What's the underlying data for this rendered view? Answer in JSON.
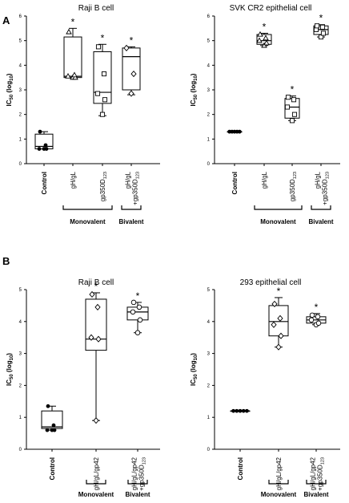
{
  "panel_labels": [
    "A",
    "B"
  ],
  "chart_data": [
    {
      "type": "boxplot",
      "title": "Raji B cell",
      "ylabel": "IC50 (log10)",
      "ylim": [
        0,
        6
      ],
      "yticks": [
        "0",
        "1",
        "2",
        "3",
        "4",
        "5",
        "6"
      ],
      "categories": [
        {
          "lines": [
            "Control"
          ],
          "bold": true
        },
        {
          "lines": [
            "gH/gL"
          ],
          "bold": false
        },
        {
          "lines": [
            "gp350D123"
          ],
          "bold": false
        },
        {
          "lines": [
            "gH/gL",
            "+gp350D123"
          ],
          "bold": false
        }
      ],
      "groups": [
        {
          "label": "Monovalent",
          "from": 1,
          "to": 2
        },
        {
          "label": "Bivalent",
          "from": 3,
          "to": 3
        }
      ],
      "series": [
        {
          "marker": "dot",
          "box": [
            0.6,
            0.7,
            1.2
          ],
          "whisker": [
            0.6,
            1.3
          ],
          "points": [
            0.6,
            0.6,
            0.6,
            0.75,
            1.3
          ],
          "star": false
        },
        {
          "marker": "triangle",
          "box": [
            3.5,
            3.55,
            5.15
          ],
          "whisker": [
            3.5,
            5.5
          ],
          "points": [
            3.5,
            3.5,
            3.55,
            3.6,
            5.35
          ],
          "star": true
        },
        {
          "marker": "square",
          "box": [
            2.45,
            2.9,
            4.55
          ],
          "whisker": [
            1.95,
            4.85
          ],
          "points": [
            2.0,
            2.6,
            2.85,
            3.65,
            4.75
          ],
          "star": true
        },
        {
          "marker": "diamond",
          "box": [
            3.0,
            4.35,
            4.7
          ],
          "whisker": [
            2.8,
            4.75
          ],
          "points": [
            2.85,
            3.65,
            4.7
          ],
          "star": true
        }
      ]
    },
    {
      "type": "boxplot",
      "title": "SVK CR2 epithelial cell",
      "ylabel": "IC50 (log10)",
      "ylim": [
        0,
        6
      ],
      "yticks": [
        "0",
        "1",
        "2",
        "3",
        "4",
        "5",
        "6"
      ],
      "categories": [
        {
          "lines": [
            "Control"
          ],
          "bold": true
        },
        {
          "lines": [
            "gH/gL"
          ],
          "bold": false
        },
        {
          "lines": [
            "gp350D123"
          ],
          "bold": false
        },
        {
          "lines": [
            "gH/gL",
            "+gp350D123"
          ],
          "bold": false
        }
      ],
      "groups": [
        {
          "label": "Monovalent",
          "from": 1,
          "to": 2
        },
        {
          "label": "Bivalent",
          "from": 3,
          "to": 3
        }
      ],
      "series": [
        {
          "marker": "dot",
          "box": [
            1.3,
            1.3,
            1.3
          ],
          "whisker": [
            1.3,
            1.3
          ],
          "points": [
            1.3,
            1.3,
            1.3,
            1.3,
            1.3
          ],
          "star": false
        },
        {
          "marker": "triangle",
          "box": [
            4.85,
            5.0,
            5.25
          ],
          "whisker": [
            4.8,
            5.3
          ],
          "points": [
            4.8,
            4.9,
            5.0,
            5.1,
            5.25
          ],
          "star": true
        },
        {
          "marker": "square",
          "box": [
            1.85,
            2.3,
            2.65
          ],
          "whisker": [
            1.75,
            2.75
          ],
          "points": [
            1.75,
            2.0,
            2.3,
            2.6,
            2.7
          ],
          "star": true
        },
        {
          "marker": "square",
          "box": [
            5.25,
            5.45,
            5.6
          ],
          "whisker": [
            5.15,
            5.65
          ],
          "points": [
            5.15,
            5.3,
            5.45,
            5.55,
            5.6
          ],
          "star": true
        }
      ]
    },
    {
      "type": "boxplot",
      "title": "Raji B cell",
      "ylabel": "IC50 (log10)",
      "ylim": [
        0,
        5
      ],
      "yticks": [
        "0",
        "1",
        "2",
        "3",
        "4",
        "5"
      ],
      "categories": [
        {
          "lines": [
            "Control"
          ],
          "bold": true
        },
        {
          "lines": [
            "gH/gL/gp42"
          ],
          "bold": false
        },
        {
          "lines": [
            "gH/gL/gp42",
            "+gp350D123"
          ],
          "bold": false
        }
      ],
      "groups": [
        {
          "label": "Monovalent",
          "from": 1,
          "to": 1
        },
        {
          "label": "Bivalent",
          "from": 2,
          "to": 2
        }
      ],
      "series": [
        {
          "marker": "dot",
          "box": [
            0.65,
            0.7,
            1.2
          ],
          "whisker": [
            0.6,
            1.35
          ],
          "points": [
            0.6,
            0.6,
            0.6,
            0.75,
            1.35
          ],
          "star": false
        },
        {
          "marker": "diamond",
          "box": [
            3.1,
            3.45,
            4.7
          ],
          "whisker": [
            0.9,
            4.9
          ],
          "points": [
            0.9,
            3.45,
            3.5,
            4.45,
            4.85
          ],
          "star": true
        },
        {
          "marker": "circle",
          "box": [
            4.05,
            4.3,
            4.45
          ],
          "whisker": [
            3.65,
            4.6
          ],
          "points": [
            3.65,
            4.05,
            4.3,
            4.45,
            4.6
          ],
          "star": true
        }
      ]
    },
    {
      "type": "boxplot",
      "title": "293 epithelial cell",
      "ylabel": "IC50 (log10)",
      "ylim": [
        0,
        5
      ],
      "yticks": [
        "0",
        "1",
        "2",
        "3",
        "4",
        "5"
      ],
      "categories": [
        {
          "lines": [
            "Control"
          ],
          "bold": true
        },
        {
          "lines": [
            "gH/gL/gp42"
          ],
          "bold": false
        },
        {
          "lines": [
            "gH/gL/gp42",
            "+gp350D123"
          ],
          "bold": false
        }
      ],
      "groups": [
        {
          "label": "Monovalent",
          "from": 1,
          "to": 1
        },
        {
          "label": "Bivalent",
          "from": 2,
          "to": 2
        }
      ],
      "series": [
        {
          "marker": "dot",
          "box": [
            1.2,
            1.2,
            1.2
          ],
          "whisker": [
            1.2,
            1.2
          ],
          "points": [
            1.2,
            1.2,
            1.2,
            1.2,
            1.2
          ],
          "star": false
        },
        {
          "marker": "diamond",
          "box": [
            3.55,
            4.0,
            4.5
          ],
          "whisker": [
            3.2,
            4.75
          ],
          "points": [
            3.2,
            3.55,
            3.9,
            4.1,
            4.55
          ],
          "star": true
        },
        {
          "marker": "circle",
          "box": [
            3.95,
            4.05,
            4.15
          ],
          "whisker": [
            3.9,
            4.25
          ],
          "points": [
            3.9,
            3.95,
            4.05,
            4.15,
            4.2
          ],
          "star": true
        }
      ]
    }
  ]
}
